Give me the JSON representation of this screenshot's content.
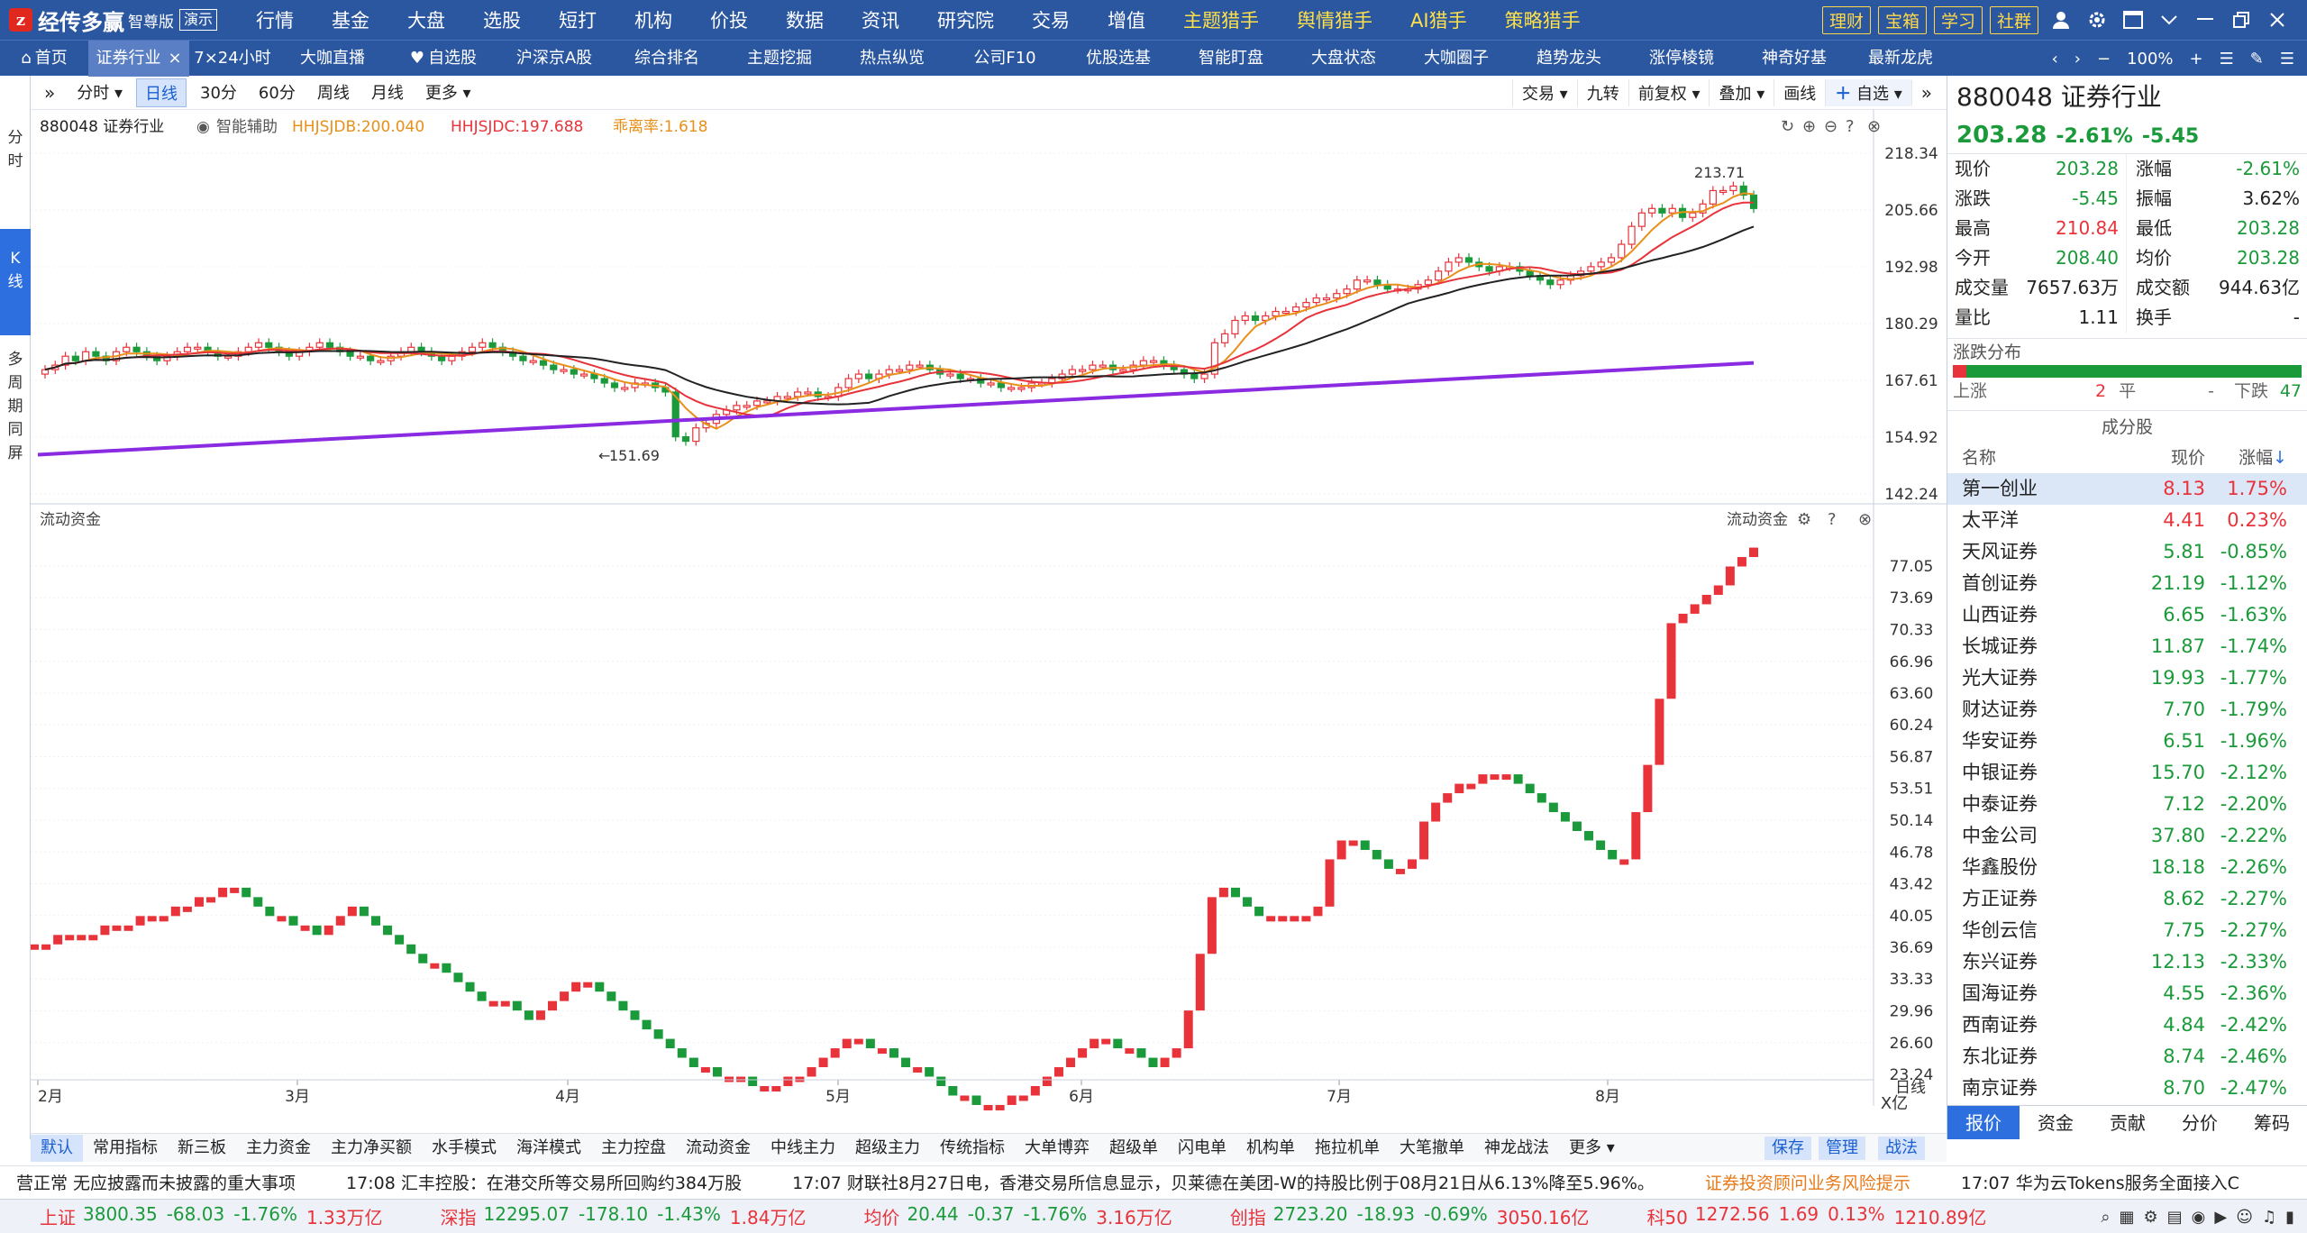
{
  "app": {
    "name": "经传多赢",
    "edition": "智尊版",
    "demo": "演示"
  },
  "menu": [
    {
      "label": "行情",
      "hi": false,
      "dot": false
    },
    {
      "label": "基金",
      "hi": false,
      "dot": false
    },
    {
      "label": "大盘",
      "hi": false,
      "dot": false
    },
    {
      "label": "选股",
      "hi": false,
      "dot": false
    },
    {
      "label": "短打",
      "hi": false,
      "dot": false
    },
    {
      "label": "机构",
      "hi": false,
      "dot": false
    },
    {
      "label": "价投",
      "hi": false,
      "dot": false
    },
    {
      "label": "数据",
      "hi": false,
      "dot": false
    },
    {
      "label": "资讯",
      "hi": false,
      "dot": false
    },
    {
      "label": "研究院",
      "hi": false,
      "dot": false
    },
    {
      "label": "交易",
      "hi": false,
      "dot": false
    },
    {
      "label": "增值",
      "hi": false,
      "dot": true
    },
    {
      "label": "主题猎手",
      "hi": true,
      "dot": false
    },
    {
      "label": "舆情猎手",
      "hi": true,
      "dot": false
    },
    {
      "label": "AI猎手",
      "hi": true,
      "dot": false
    },
    {
      "label": "策略猎手",
      "hi": true,
      "dot": false
    }
  ],
  "right_buttons": [
    "理财",
    "宝箱",
    "学习",
    "社群"
  ],
  "tabs": [
    {
      "label": "首页",
      "icon": "home-icon",
      "w": 98,
      "active": false,
      "close": false
    },
    {
      "label": "证券行业",
      "w": 112,
      "active": true,
      "close": true
    },
    {
      "label": "7×24小时",
      "w": 96,
      "active": false,
      "close": false
    },
    {
      "label": "大咖直播",
      "w": 126,
      "active": false,
      "close": false
    },
    {
      "label": "自选股",
      "icon": "heart-icon",
      "w": 120,
      "active": false,
      "close": false
    },
    {
      "label": "沪深京A股",
      "w": 126,
      "active": false,
      "close": false
    },
    {
      "label": "综合排名",
      "w": 124,
      "active": false,
      "close": false
    },
    {
      "label": "主题挖掘",
      "w": 126,
      "active": false,
      "close": false
    },
    {
      "label": "热点纵览",
      "w": 124,
      "active": false,
      "close": false
    },
    {
      "label": "公司F10",
      "w": 126,
      "active": false,
      "close": false
    },
    {
      "label": "优股选基",
      "w": 126,
      "active": false,
      "close": false
    },
    {
      "label": "智能盯盘",
      "w": 124,
      "active": false,
      "close": false
    },
    {
      "label": "大盘状态",
      "w": 126,
      "active": false,
      "close": false
    },
    {
      "label": "大咖圈子",
      "w": 124,
      "active": false,
      "close": false
    },
    {
      "label": "趋势龙头",
      "w": 126,
      "active": false,
      "close": false
    },
    {
      "label": "涨停棱镜",
      "w": 124,
      "active": false,
      "close": false
    },
    {
      "label": "神奇好基",
      "w": 126,
      "active": false,
      "close": false
    },
    {
      "label": "最新龙虎",
      "w": 110,
      "active": false,
      "close": false
    }
  ],
  "zoom": "100%",
  "left_tabs": [
    {
      "label": "分时",
      "active": false
    },
    {
      "label": "K线",
      "active": true
    },
    {
      "label": "多周期同屏",
      "active": false
    }
  ],
  "periods": [
    {
      "label": "分时",
      "active": false,
      "arrow": true
    },
    {
      "label": "日线",
      "active": true,
      "arrow": false
    },
    {
      "label": "30分",
      "active": false,
      "arrow": false
    },
    {
      "label": "60分",
      "active": false,
      "arrow": false
    },
    {
      "label": "周线",
      "active": false,
      "arrow": false
    },
    {
      "label": "月线",
      "active": false,
      "arrow": false
    },
    {
      "label": "更多",
      "active": false,
      "arrow": true
    }
  ],
  "chart_tools": [
    "交易",
    "九转",
    "前复权",
    "叠加",
    "画线"
  ],
  "chart_tools_arrow": [
    true,
    false,
    true,
    true,
    false
  ],
  "self_select": "自选",
  "main_chart": {
    "code_name": "880048 证券行业",
    "assist": "智能辅助",
    "ind1": "HHJSJDB:200.040",
    "ind2": "HHJSJDC:197.688",
    "ind3": "乖离率:1.618",
    "y_ticks": [
      "218.34",
      "205.66",
      "192.98",
      "180.29",
      "167.61",
      "154.92",
      "142.24"
    ],
    "hi_label": "213.71",
    "lo_label": "151.69"
  },
  "sub_chart": {
    "title": "流动资金",
    "title_r": "流动资金",
    "y_ticks": [
      "77.05",
      "73.69",
      "70.33",
      "66.96",
      "63.60",
      "60.24",
      "56.87",
      "53.51",
      "50.14",
      "46.78",
      "43.42",
      "40.05",
      "36.69",
      "33.33",
      "29.96",
      "26.60",
      "23.24"
    ],
    "unit": "X亿",
    "period": "日线"
  },
  "x_labels": [
    "2月",
    "3月",
    "4月",
    "5月",
    "6月",
    "7月",
    "8月"
  ],
  "quote": {
    "code": "880048",
    "name": "证券行业",
    "price": "203.28",
    "chg_pct": "-2.61%",
    "chg": "-5.45",
    "rows": [
      [
        {
          "k": "现价",
          "v": "203.28",
          "c": "g"
        },
        {
          "k": "涨幅",
          "v": "-2.61%",
          "c": "g"
        }
      ],
      [
        {
          "k": "涨跌",
          "v": "-5.45",
          "c": "g"
        },
        {
          "k": "振幅",
          "v": "3.62%",
          "c": "k"
        }
      ],
      [
        {
          "k": "最高",
          "v": "210.84",
          "c": "r"
        },
        {
          "k": "最低",
          "v": "203.28",
          "c": "g"
        }
      ],
      [
        {
          "k": "今开",
          "v": "208.40",
          "c": "g"
        },
        {
          "k": "均价",
          "v": "203.28",
          "c": "g"
        }
      ],
      [
        {
          "k": "成交量",
          "v": "7657.63万",
          "c": "k"
        },
        {
          "k": "成交额",
          "v": "944.63亿",
          "c": "k"
        }
      ],
      [
        {
          "k": "量比",
          "v": "1.11",
          "c": "k"
        },
        {
          "k": "换手",
          "v": "-",
          "c": "k"
        }
      ]
    ]
  },
  "dist": {
    "title": "涨跌分布",
    "up_label": "上涨",
    "up": "2",
    "flat_label": "平",
    "flat": "-",
    "down_label": "下跌",
    "down": "47",
    "up_ratio": 0.04
  },
  "constituents": {
    "title": "成分股",
    "headers": [
      "名称",
      "现价",
      "涨幅"
    ],
    "rows": [
      {
        "n": "第一创业",
        "p": "8.13",
        "z": "1.75%",
        "c": "r"
      },
      {
        "n": "太平洋",
        "p": "4.41",
        "z": "0.23%",
        "c": "r"
      },
      {
        "n": "天风证券",
        "p": "5.81",
        "z": "-0.85%",
        "c": "g"
      },
      {
        "n": "首创证券",
        "p": "21.19",
        "z": "-1.12%",
        "c": "g"
      },
      {
        "n": "山西证券",
        "p": "6.65",
        "z": "-1.63%",
        "c": "g"
      },
      {
        "n": "长城证券",
        "p": "11.87",
        "z": "-1.74%",
        "c": "g"
      },
      {
        "n": "光大证券",
        "p": "19.93",
        "z": "-1.77%",
        "c": "g"
      },
      {
        "n": "财达证券",
        "p": "7.70",
        "z": "-1.79%",
        "c": "g"
      },
      {
        "n": "华安证券",
        "p": "6.51",
        "z": "-1.96%",
        "c": "g"
      },
      {
        "n": "中银证券",
        "p": "15.70",
        "z": "-2.12%",
        "c": "g"
      },
      {
        "n": "中泰证券",
        "p": "7.12",
        "z": "-2.20%",
        "c": "g"
      },
      {
        "n": "中金公司",
        "p": "37.80",
        "z": "-2.22%",
        "c": "g"
      },
      {
        "n": "华鑫股份",
        "p": "18.18",
        "z": "-2.26%",
        "c": "g"
      },
      {
        "n": "方正证券",
        "p": "8.62",
        "z": "-2.27%",
        "c": "g"
      },
      {
        "n": "华创云信",
        "p": "7.75",
        "z": "-2.27%",
        "c": "g"
      },
      {
        "n": "东兴证券",
        "p": "12.13",
        "z": "-2.33%",
        "c": "g"
      },
      {
        "n": "国海证券",
        "p": "4.55",
        "z": "-2.36%",
        "c": "g"
      },
      {
        "n": "西南证券",
        "p": "4.84",
        "z": "-2.42%",
        "c": "g"
      },
      {
        "n": "东北证券",
        "p": "8.74",
        "z": "-2.46%",
        "c": "g"
      },
      {
        "n": "南京证券",
        "p": "8.70",
        "z": "-2.47%",
        "c": "g"
      }
    ]
  },
  "right_tabs": [
    {
      "label": "报价",
      "active": true
    },
    {
      "label": "资金",
      "active": false
    },
    {
      "label": "贡献",
      "active": false
    },
    {
      "label": "分价",
      "active": false
    },
    {
      "label": "筹码",
      "active": false
    }
  ],
  "indicators": [
    "默认",
    "常用指标",
    "新三板",
    "主力资金",
    "主力净买额",
    "水手模式",
    "海洋模式",
    "主力控盘",
    "流动资金",
    "中线主力",
    "超级主力",
    "传统指标",
    "大单博弈",
    "超级单",
    "闪电单",
    "机构单",
    "拖拉机单",
    "大笔撤单",
    "神龙战法",
    "更多"
  ],
  "indicator_right": [
    "保存",
    "管理",
    "战法"
  ],
  "news": [
    {
      "t": "营正常 无应披露而未披露的重大事项",
      "c": ""
    },
    {
      "t": "17:08 汇丰控股：在港交所等交易所回购约384万股",
      "c": ""
    },
    {
      "t": "17:07 财联社8月27日电，香港交易所信息显示，贝莱德在美团-W的持股比例于08月21日从6.13%降至5.96%。",
      "c": ""
    },
    {
      "t": "证券投资顾问业务风险提示",
      "c": "warn"
    },
    {
      "t": "17:07 华为云Tokens服务全面接入C",
      "c": ""
    }
  ],
  "indices": [
    {
      "n": "上证",
      "v": "3800.35",
      "c": "-68.03",
      "p": "-1.76%",
      "a": "1.33万亿"
    },
    {
      "n": "深指",
      "v": "12295.07",
      "c": "-178.10",
      "p": "-1.43%",
      "a": "1.84万亿"
    },
    {
      "n": "均价",
      "v": "20.44",
      "c": "-0.37",
      "p": "-1.76%",
      "a": "3.16万亿"
    },
    {
      "n": "创指",
      "v": "2723.20",
      "c": "-18.93",
      "p": "-0.69%",
      "a": "3050.16亿"
    },
    {
      "n": "科50",
      "v": "1272.56",
      "c": "1.69",
      "p": "0.13%",
      "a": "1210.89亿"
    }
  ],
  "colors": {
    "up": "#e8333a",
    "down": "#1a9a3a",
    "brand": "#2b56a0",
    "accent": "#2e6fe0",
    "trend": "#8a2be2"
  }
}
